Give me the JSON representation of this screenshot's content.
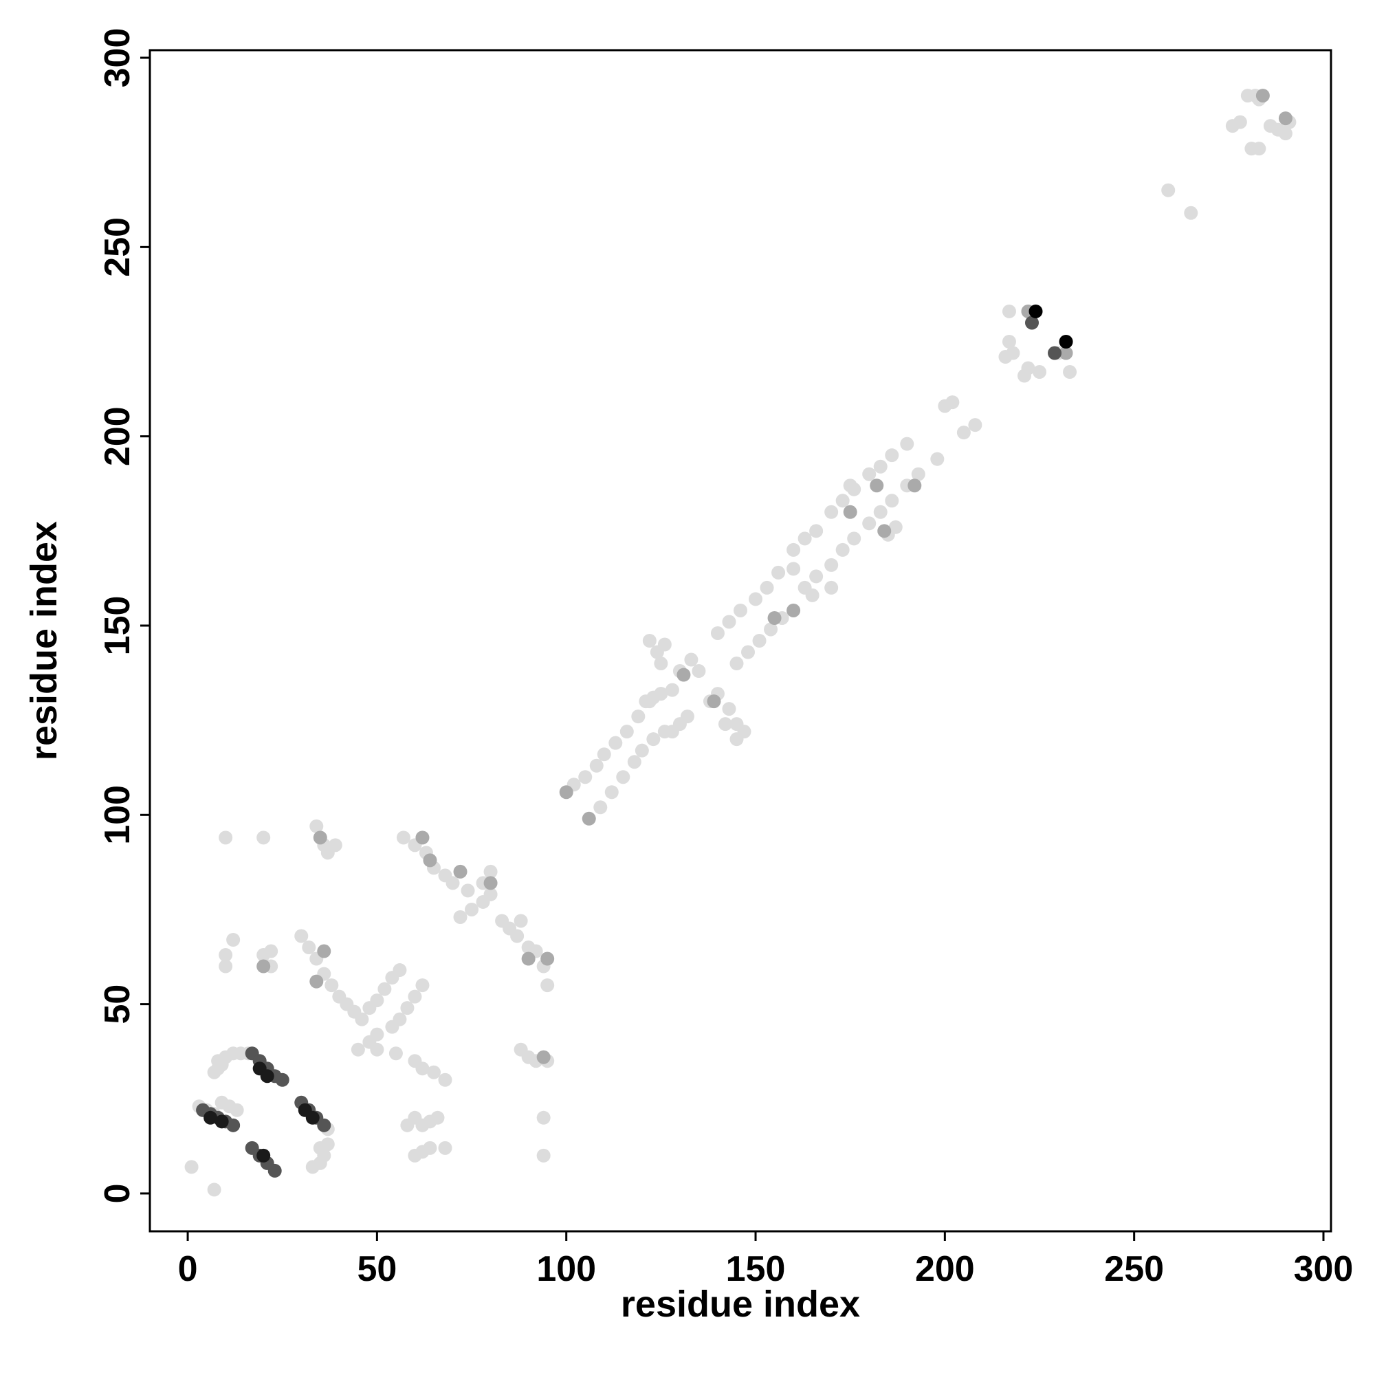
{
  "chart_data": {
    "type": "scatter",
    "x_label": "residue index",
    "y_label": "residue index",
    "xlim": [
      -10,
      302
    ],
    "ylim": [
      -10,
      302
    ],
    "xticks": [
      0,
      50,
      100,
      150,
      200,
      250,
      300
    ],
    "yticks": [
      0,
      50,
      100,
      150,
      200,
      250,
      300
    ],
    "series": [
      {
        "color": "#dcdcdc",
        "x": [
          1,
          7,
          10,
          20,
          10,
          10,
          12,
          20,
          22,
          22,
          3,
          5,
          7,
          9,
          11,
          13,
          8,
          8,
          10,
          12,
          14,
          16,
          7,
          9,
          33,
          35,
          36,
          37,
          37,
          35,
          34,
          36,
          37,
          39,
          30,
          32,
          34,
          36,
          38,
          40,
          42,
          44,
          46,
          48,
          50,
          52,
          54,
          56,
          45,
          48,
          50,
          54,
          56,
          58,
          60,
          62,
          50,
          55,
          60,
          62,
          65,
          68,
          57,
          60,
          63,
          65,
          68,
          70,
          74,
          78,
          80,
          72,
          75,
          78,
          80,
          83,
          85,
          87,
          88,
          90,
          92,
          94,
          95,
          88,
          90,
          92,
          95,
          94,
          94,
          58,
          60,
          62,
          64,
          66,
          64,
          60,
          62,
          68,
          102,
          105,
          108,
          110,
          113,
          116,
          119,
          122,
          125,
          109,
          112,
          115,
          118,
          120,
          123,
          126,
          122,
          124,
          125,
          126,
          121,
          123,
          125,
          128,
          130,
          133,
          135,
          128,
          130,
          132,
          138,
          140,
          143,
          145,
          147,
          142,
          145,
          140,
          143,
          146,
          150,
          153,
          156,
          160,
          163,
          166,
          170,
          173,
          176,
          180,
          183,
          186,
          190,
          145,
          148,
          151,
          154,
          157,
          163,
          166,
          170,
          173,
          176,
          180,
          183,
          186,
          190,
          193,
          198,
          160,
          165,
          175,
          170,
          187,
          185,
          200,
          202,
          205,
          208,
          216,
          218,
          217,
          221,
          222,
          225,
          217,
          222,
          230,
          233,
          259,
          265,
          276,
          278,
          280,
          282,
          283,
          281,
          283,
          286,
          288,
          290,
          291
        ],
        "values": [
          7,
          1,
          94,
          94,
          63,
          60,
          67,
          63,
          60,
          64,
          23,
          22,
          21,
          24,
          23,
          22,
          33,
          35,
          36,
          37,
          37,
          37,
          32,
          34,
          7,
          8,
          10,
          13,
          17,
          12,
          97,
          92,
          90,
          92,
          68,
          65,
          62,
          58,
          55,
          52,
          50,
          48,
          46,
          49,
          51,
          54,
          57,
          59,
          38,
          40,
          42,
          44,
          46,
          49,
          52,
          55,
          38,
          37,
          35,
          33,
          32,
          30,
          94,
          92,
          90,
          86,
          84,
          82,
          80,
          82,
          85,
          73,
          75,
          77,
          79,
          72,
          70,
          68,
          72,
          65,
          64,
          60,
          55,
          38,
          36,
          35,
          35,
          20,
          10,
          18,
          20,
          18,
          19,
          20,
          12,
          10,
          11,
          12,
          108,
          110,
          113,
          116,
          119,
          122,
          126,
          130,
          132,
          102,
          106,
          110,
          114,
          117,
          120,
          122,
          146,
          143,
          140,
          145,
          130,
          131,
          132,
          133,
          138,
          141,
          138,
          122,
          124,
          126,
          130,
          132,
          128,
          124,
          122,
          124,
          120,
          148,
          151,
          154,
          157,
          160,
          164,
          170,
          173,
          175,
          180,
          183,
          186,
          190,
          192,
          195,
          198,
          140,
          143,
          146,
          149,
          152,
          160,
          163,
          166,
          170,
          173,
          177,
          180,
          183,
          187,
          190,
          194,
          165,
          158,
          187,
          160,
          176,
          174,
          208,
          209,
          201,
          203,
          221,
          222,
          225,
          216,
          218,
          217,
          233,
          233,
          222,
          217,
          265,
          259,
          282,
          283,
          290,
          290,
          289,
          276,
          276,
          282,
          281,
          280,
          283
        ]
      },
      {
        "color": "#aaaaaa",
        "x": [
          35,
          62,
          64,
          20,
          36,
          34,
          72,
          80,
          90,
          95,
          94,
          100,
          106,
          131,
          139,
          155,
          160,
          175,
          182,
          184,
          192,
          222,
          232,
          284,
          290
        ],
        "values": [
          94,
          94,
          88,
          60,
          64,
          56,
          85,
          82,
          62,
          62,
          36,
          106,
          99,
          137,
          130,
          152,
          154,
          180,
          187,
          175,
          187,
          233,
          222,
          290,
          284
        ]
      },
      {
        "color": "#555555",
        "x": [
          4,
          6,
          8,
          10,
          12,
          17,
          19,
          21,
          23,
          25,
          17,
          19,
          21,
          23,
          30,
          32,
          34,
          36,
          223,
          229
        ],
        "values": [
          22,
          21,
          20,
          19,
          18,
          37,
          35,
          33,
          31,
          30,
          12,
          10,
          8,
          6,
          24,
          22,
          20,
          18,
          230,
          222
        ]
      },
      {
        "color": "#1a1a1a",
        "x": [
          6,
          9,
          19,
          21,
          20,
          31,
          33
        ],
        "values": [
          20,
          19,
          33,
          31,
          10,
          22,
          20
        ]
      },
      {
        "color": "#000000",
        "x": [
          224,
          232
        ],
        "values": [
          233,
          225
        ]
      }
    ]
  }
}
